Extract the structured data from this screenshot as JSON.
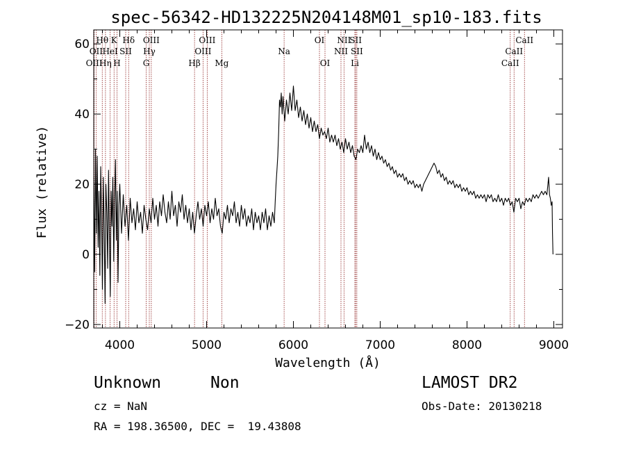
{
  "chart_data": {
    "type": "line",
    "title": "spec-56342-HD132225N204148M01_sp10-183.fits",
    "xlabel": "Wavelength (Å)",
    "ylabel": "Flux (relative)",
    "xlim": [
      3700,
      9100
    ],
    "ylim": [
      -21,
      64
    ],
    "xticks": [
      4000,
      5000,
      6000,
      7000,
      8000,
      9000
    ],
    "yticks": [
      -20,
      0,
      20,
      40,
      60
    ],
    "grid": false,
    "line_color": "#000000",
    "marker_color": "#8b1a1a",
    "series": [
      {
        "values": [
          [
            3700,
            22
          ],
          [
            3710,
            -5
          ],
          [
            3720,
            30
          ],
          [
            3730,
            6
          ],
          [
            3740,
            28
          ],
          [
            3750,
            2
          ],
          [
            3760,
            18
          ],
          [
            3770,
            -6
          ],
          [
            3780,
            25
          ],
          [
            3790,
            10
          ],
          [
            3800,
            -10
          ],
          [
            3810,
            22
          ],
          [
            3820,
            8
          ],
          [
            3830,
            -14
          ],
          [
            3840,
            20
          ],
          [
            3850,
            12
          ],
          [
            3860,
            -4
          ],
          [
            3870,
            24
          ],
          [
            3880,
            6
          ],
          [
            3890,
            -12
          ],
          [
            3900,
            18
          ],
          [
            3910,
            8
          ],
          [
            3920,
            22
          ],
          [
            3930,
            -2
          ],
          [
            3940,
            15
          ],
          [
            3950,
            27
          ],
          [
            3960,
            4
          ],
          [
            3970,
            18
          ],
          [
            3980,
            -8
          ],
          [
            3990,
            14
          ],
          [
            4000,
            20
          ],
          [
            4020,
            6
          ],
          [
            4040,
            17
          ],
          [
            4060,
            8
          ],
          [
            4080,
            14
          ],
          [
            4100,
            4
          ],
          [
            4120,
            16
          ],
          [
            4140,
            9
          ],
          [
            4160,
            13
          ],
          [
            4180,
            7
          ],
          [
            4200,
            15
          ],
          [
            4220,
            9
          ],
          [
            4240,
            12
          ],
          [
            4260,
            6
          ],
          [
            4280,
            14
          ],
          [
            4300,
            10
          ],
          [
            4320,
            7
          ],
          [
            4340,
            13
          ],
          [
            4360,
            9
          ],
          [
            4380,
            16
          ],
          [
            4400,
            10
          ],
          [
            4420,
            14
          ],
          [
            4440,
            8
          ],
          [
            4460,
            15
          ],
          [
            4480,
            11
          ],
          [
            4500,
            17
          ],
          [
            4520,
            12
          ],
          [
            4540,
            9
          ],
          [
            4560,
            15
          ],
          [
            4580,
            10
          ],
          [
            4600,
            18
          ],
          [
            4620,
            11
          ],
          [
            4640,
            14
          ],
          [
            4660,
            8
          ],
          [
            4680,
            15
          ],
          [
            4700,
            12
          ],
          [
            4720,
            17
          ],
          [
            4740,
            10
          ],
          [
            4760,
            14
          ],
          [
            4780,
            9
          ],
          [
            4800,
            13
          ],
          [
            4820,
            7
          ],
          [
            4840,
            12
          ],
          [
            4860,
            6
          ],
          [
            4880,
            11
          ],
          [
            4900,
            15
          ],
          [
            4920,
            10
          ],
          [
            4940,
            13
          ],
          [
            4960,
            8
          ],
          [
            4980,
            14
          ],
          [
            5000,
            11
          ],
          [
            5020,
            15
          ],
          [
            5040,
            9
          ],
          [
            5060,
            13
          ],
          [
            5080,
            10
          ],
          [
            5100,
            16
          ],
          [
            5120,
            11
          ],
          [
            5140,
            13
          ],
          [
            5160,
            8
          ],
          [
            5180,
            6
          ],
          [
            5200,
            12
          ],
          [
            5220,
            10
          ],
          [
            5240,
            14
          ],
          [
            5260,
            9
          ],
          [
            5280,
            13
          ],
          [
            5300,
            11
          ],
          [
            5320,
            15
          ],
          [
            5340,
            9
          ],
          [
            5360,
            12
          ],
          [
            5380,
            8
          ],
          [
            5400,
            14
          ],
          [
            5420,
            10
          ],
          [
            5440,
            13
          ],
          [
            5460,
            8
          ],
          [
            5480,
            11
          ],
          [
            5500,
            9
          ],
          [
            5520,
            13
          ],
          [
            5540,
            7
          ],
          [
            5560,
            12
          ],
          [
            5580,
            9
          ],
          [
            5600,
            11
          ],
          [
            5620,
            7
          ],
          [
            5640,
            12
          ],
          [
            5660,
            9
          ],
          [
            5680,
            13
          ],
          [
            5700,
            7
          ],
          [
            5720,
            11
          ],
          [
            5740,
            8
          ],
          [
            5760,
            12
          ],
          [
            5780,
            9
          ],
          [
            5790,
            15
          ],
          [
            5800,
            20
          ],
          [
            5810,
            24
          ],
          [
            5820,
            28
          ],
          [
            5830,
            35
          ],
          [
            5840,
            44
          ],
          [
            5850,
            42
          ],
          [
            5860,
            46
          ],
          [
            5870,
            40
          ],
          [
            5880,
            45
          ],
          [
            5900,
            38
          ],
          [
            5920,
            44
          ],
          [
            5940,
            40
          ],
          [
            5960,
            46
          ],
          [
            5980,
            41
          ],
          [
            6000,
            48
          ],
          [
            6020,
            41
          ],
          [
            6040,
            44
          ],
          [
            6060,
            39
          ],
          [
            6080,
            42
          ],
          [
            6100,
            38
          ],
          [
            6120,
            41
          ],
          [
            6140,
            37
          ],
          [
            6160,
            40
          ],
          [
            6180,
            36
          ],
          [
            6200,
            39
          ],
          [
            6220,
            35
          ],
          [
            6240,
            38
          ],
          [
            6260,
            35
          ],
          [
            6280,
            37
          ],
          [
            6300,
            33
          ],
          [
            6320,
            36
          ],
          [
            6340,
            34
          ],
          [
            6360,
            35
          ],
          [
            6380,
            33
          ],
          [
            6400,
            36
          ],
          [
            6420,
            32
          ],
          [
            6440,
            34
          ],
          [
            6460,
            32
          ],
          [
            6480,
            34
          ],
          [
            6500,
            31
          ],
          [
            6520,
            33
          ],
          [
            6540,
            30
          ],
          [
            6560,
            32
          ],
          [
            6580,
            29
          ],
          [
            6600,
            33
          ],
          [
            6620,
            30
          ],
          [
            6640,
            32
          ],
          [
            6660,
            29
          ],
          [
            6680,
            31
          ],
          [
            6700,
            28
          ],
          [
            6720,
            27
          ],
          [
            6740,
            30
          ],
          [
            6760,
            29
          ],
          [
            6780,
            31
          ],
          [
            6800,
            29
          ],
          [
            6820,
            34
          ],
          [
            6840,
            30
          ],
          [
            6860,
            32
          ],
          [
            6880,
            29
          ],
          [
            6900,
            31
          ],
          [
            6920,
            28
          ],
          [
            6940,
            30
          ],
          [
            6960,
            27
          ],
          [
            6980,
            29
          ],
          [
            7000,
            27
          ],
          [
            7020,
            28
          ],
          [
            7040,
            26
          ],
          [
            7060,
            27
          ],
          [
            7080,
            25
          ],
          [
            7100,
            26
          ],
          [
            7120,
            24
          ],
          [
            7140,
            25
          ],
          [
            7160,
            23
          ],
          [
            7180,
            24
          ],
          [
            7200,
            22
          ],
          [
            7220,
            23
          ],
          [
            7240,
            22
          ],
          [
            7260,
            23
          ],
          [
            7280,
            21
          ],
          [
            7300,
            22
          ],
          [
            7320,
            20
          ],
          [
            7340,
            21
          ],
          [
            7360,
            20
          ],
          [
            7380,
            21
          ],
          [
            7400,
            19
          ],
          [
            7420,
            20
          ],
          [
            7440,
            19
          ],
          [
            7460,
            20
          ],
          [
            7480,
            18
          ],
          [
            7500,
            20
          ],
          [
            7520,
            21
          ],
          [
            7540,
            22
          ],
          [
            7560,
            23
          ],
          [
            7580,
            24
          ],
          [
            7600,
            25
          ],
          [
            7620,
            26
          ],
          [
            7640,
            25
          ],
          [
            7660,
            23
          ],
          [
            7680,
            24
          ],
          [
            7700,
            22
          ],
          [
            7720,
            23
          ],
          [
            7740,
            21
          ],
          [
            7760,
            22
          ],
          [
            7780,
            20
          ],
          [
            7800,
            21
          ],
          [
            7820,
            20
          ],
          [
            7840,
            21
          ],
          [
            7860,
            19
          ],
          [
            7880,
            20
          ],
          [
            7900,
            19
          ],
          [
            7920,
            20
          ],
          [
            7940,
            18
          ],
          [
            7960,
            19
          ],
          [
            7980,
            18
          ],
          [
            8000,
            19
          ],
          [
            8020,
            17
          ],
          [
            8040,
            18
          ],
          [
            8060,
            17
          ],
          [
            8080,
            18
          ],
          [
            8100,
            16
          ],
          [
            8120,
            17
          ],
          [
            8140,
            16
          ],
          [
            8160,
            17
          ],
          [
            8180,
            16
          ],
          [
            8200,
            17
          ],
          [
            8220,
            15
          ],
          [
            8240,
            17
          ],
          [
            8260,
            16
          ],
          [
            8280,
            17
          ],
          [
            8300,
            15
          ],
          [
            8320,
            16
          ],
          [
            8340,
            15
          ],
          [
            8360,
            17
          ],
          [
            8380,
            15
          ],
          [
            8400,
            16
          ],
          [
            8420,
            14
          ],
          [
            8440,
            16
          ],
          [
            8460,
            15
          ],
          [
            8480,
            16
          ],
          [
            8500,
            14
          ],
          [
            8520,
            15
          ],
          [
            8540,
            12
          ],
          [
            8560,
            16
          ],
          [
            8580,
            15
          ],
          [
            8600,
            16
          ],
          [
            8620,
            13
          ],
          [
            8640,
            15
          ],
          [
            8660,
            14
          ],
          [
            8680,
            16
          ],
          [
            8700,
            15
          ],
          [
            8720,
            16
          ],
          [
            8740,
            15
          ],
          [
            8760,
            17
          ],
          [
            8780,
            16
          ],
          [
            8800,
            17
          ],
          [
            8820,
            16
          ],
          [
            8840,
            17
          ],
          [
            8860,
            18
          ],
          [
            8880,
            17
          ],
          [
            8900,
            18
          ],
          [
            8920,
            17
          ],
          [
            8940,
            22
          ],
          [
            8950,
            17
          ],
          [
            8960,
            16
          ],
          [
            8970,
            14
          ],
          [
            8980,
            15
          ],
          [
            8985,
            6
          ],
          [
            8990,
            0
          ]
        ]
      }
    ],
    "line_markers": [
      {
        "label": "Hθ",
        "wavelength": 3798,
        "row": 1
      },
      {
        "label": "OII",
        "wavelength": 3727,
        "row": 2
      },
      {
        "label": "OIII",
        "wavelength": 3705,
        "row": 3
      },
      {
        "label": "HeI",
        "wavelength": 3889,
        "row": 2
      },
      {
        "label": "Hη",
        "wavelength": 3835,
        "row": 3
      },
      {
        "label": "K",
        "wavelength": 3934,
        "row": 1
      },
      {
        "label": "H",
        "wavelength": 3968,
        "row": 3
      },
      {
        "label": "SII",
        "wavelength": 4068,
        "row": 2
      },
      {
        "label": "Hδ",
        "wavelength": 4102,
        "row": 1
      },
      {
        "label": "OIII",
        "wavelength": 4363,
        "row": 1
      },
      {
        "label": "Hγ",
        "wavelength": 4340,
        "row": 2
      },
      {
        "label": "G",
        "wavelength": 4304,
        "row": 3
      },
      {
        "label": "OIII",
        "wavelength": 5007,
        "row": 1
      },
      {
        "label": "OIII",
        "wavelength": 4959,
        "row": 2
      },
      {
        "label": "Hβ",
        "wavelength": 4861,
        "row": 3
      },
      {
        "label": "Mg",
        "wavelength": 5175,
        "row": 3
      },
      {
        "label": "Na",
        "wavelength": 5893,
        "row": 2
      },
      {
        "label": "OI",
        "wavelength": 6300,
        "row": 1
      },
      {
        "label": "OI",
        "wavelength": 6364,
        "row": 3
      },
      {
        "label": "NII",
        "wavelength": 6583,
        "row": 1
      },
      {
        "label": "NII",
        "wavelength": 6548,
        "row": 2
      },
      {
        "label": "SII",
        "wavelength": 6717,
        "row": 1
      },
      {
        "label": "SII",
        "wavelength": 6731,
        "row": 2
      },
      {
        "label": "Li",
        "wavelength": 6708,
        "row": 3
      },
      {
        "label": "CaII",
        "wavelength": 8662,
        "row": 1
      },
      {
        "label": "CaII",
        "wavelength": 8542,
        "row": 2
      },
      {
        "label": "CaII",
        "wavelength": 8498,
        "row": 3
      }
    ]
  },
  "info": {
    "class": "Unknown",
    "subclass": "Non",
    "survey": "LAMOST DR2",
    "cz": "cz = NaN",
    "obs_date": "Obs-Date: 20130218",
    "coords": "RA = 198.36500, DEC =  19.43808"
  }
}
